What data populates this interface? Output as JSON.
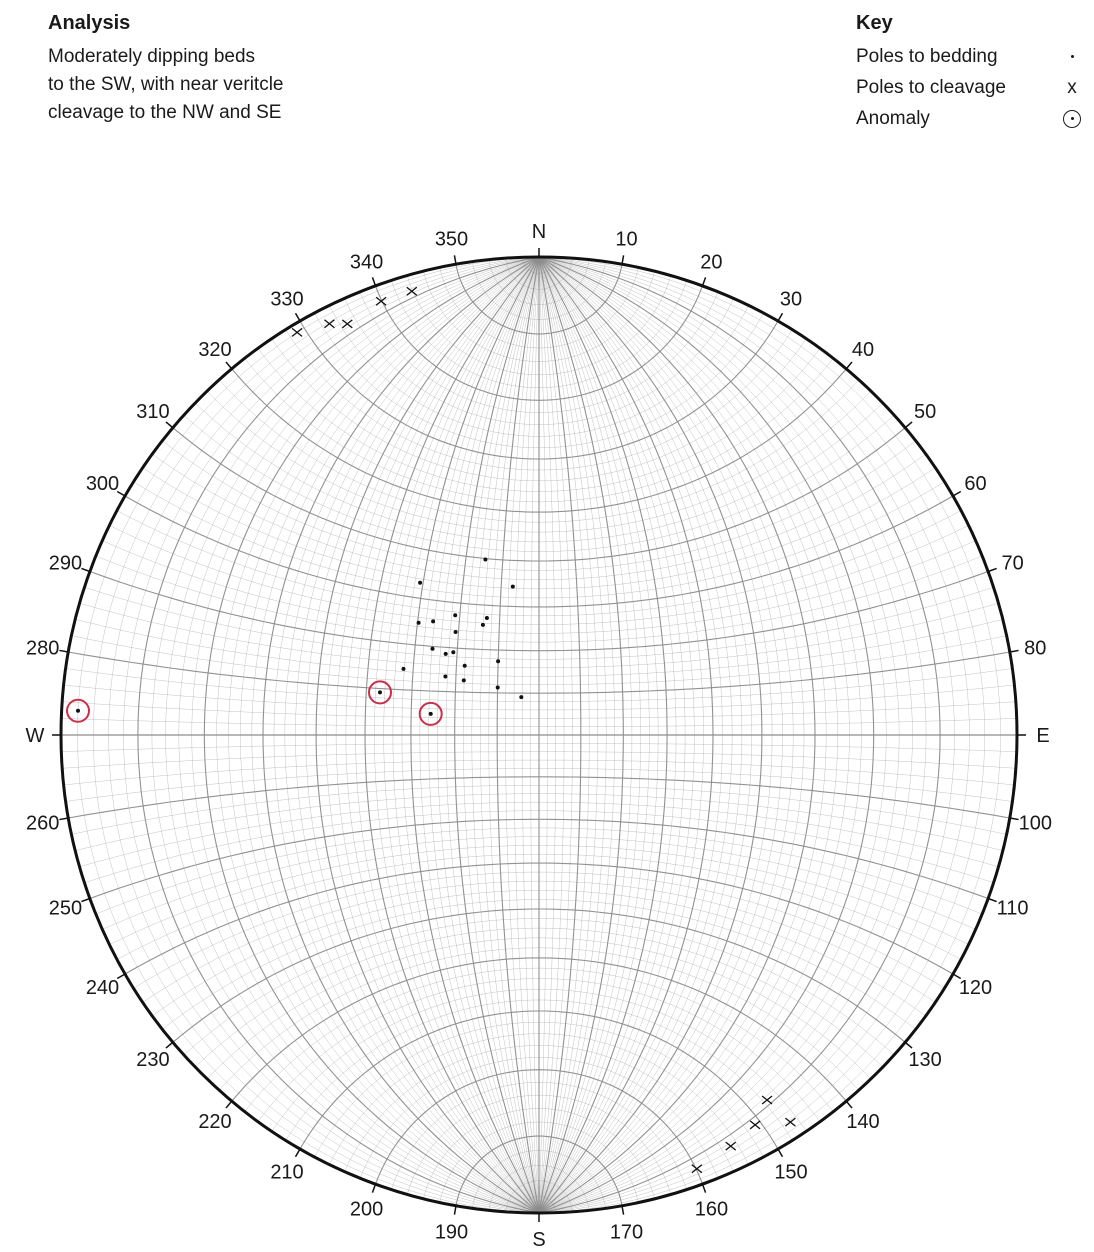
{
  "analysis": {
    "title": "Analysis",
    "lines": [
      "Moderately dipping beds",
      "to the SW, with near veritcle",
      "cleavage to the NW and SE"
    ]
  },
  "key": {
    "title": "Key",
    "items": [
      {
        "label": "Poles to bedding",
        "symbol": "."
      },
      {
        "label": "Poles to cleavage",
        "symbol": "x"
      },
      {
        "label": "Anomaly",
        "symbol": "circled-dot-icon"
      }
    ]
  },
  "net": {
    "cardinals": {
      "N": "N",
      "E": "E",
      "S": "S",
      "W": "W"
    },
    "tick_labels": [
      "10",
      "20",
      "30",
      "40",
      "50",
      "60",
      "70",
      "80",
      "100",
      "110",
      "120",
      "130",
      "140",
      "150",
      "160",
      "170",
      "190",
      "200",
      "210",
      "220",
      "230",
      "240",
      "250",
      "260",
      "280",
      "290",
      "300",
      "310",
      "320",
      "330",
      "340",
      "350"
    ],
    "colors": {
      "anomaly": "#c8304a",
      "grid": "#8c8c8c",
      "outline": "#111111"
    }
  }
}
